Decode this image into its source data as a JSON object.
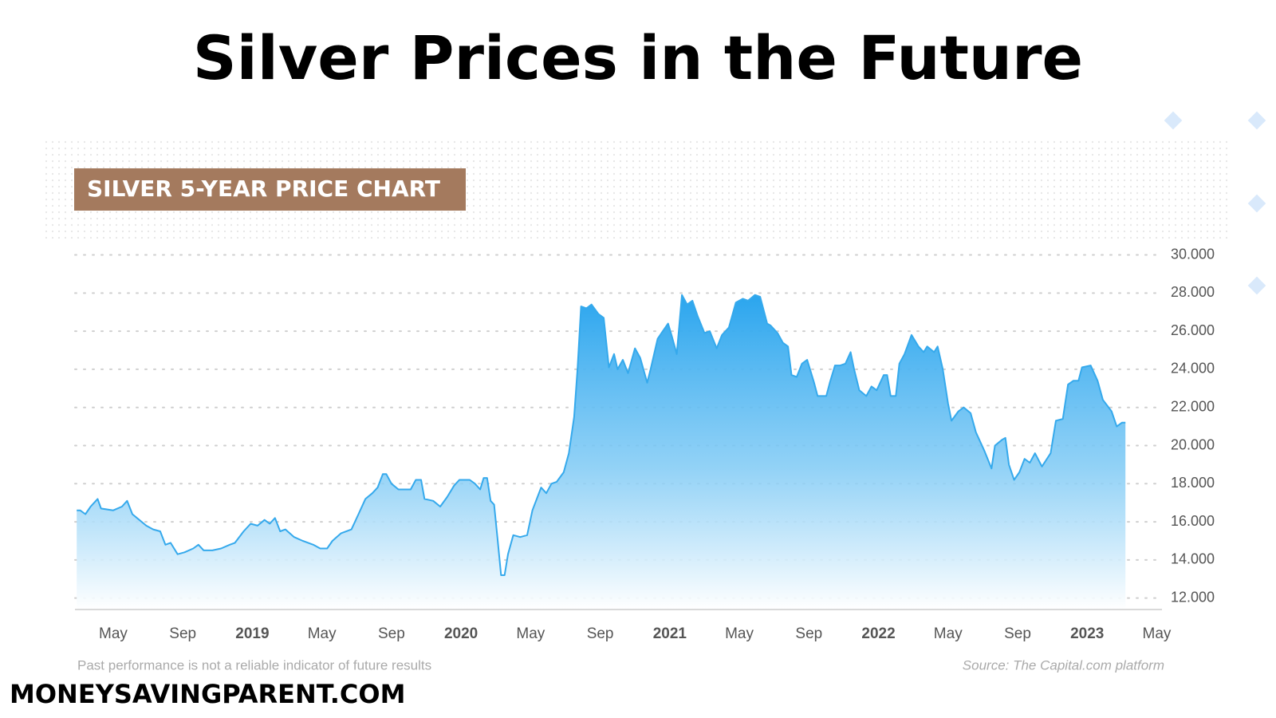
{
  "chart_data": {
    "type": "area",
    "title": "Silver Prices in the Future",
    "subtitle": "SILVER 5-YEAR PRICE CHART",
    "note": "Past performance is not a reliable indicator of future results",
    "source": "Source: The Capital.com platform",
    "color": "#35a9ec",
    "grid": true,
    "xlim": [
      -2.2,
      60.3
    ],
    "xticks": [
      {
        "value": 0,
        "label": "May"
      },
      {
        "value": 4,
        "label": "Sep"
      },
      {
        "value": 8,
        "label": "2019"
      },
      {
        "value": 12,
        "label": "May"
      },
      {
        "value": 16,
        "label": "Sep"
      },
      {
        "value": 20,
        "label": "2020"
      },
      {
        "value": 24,
        "label": "May"
      },
      {
        "value": 28,
        "label": "Sep"
      },
      {
        "value": 32,
        "label": "2021"
      },
      {
        "value": 36,
        "label": "May"
      },
      {
        "value": 40,
        "label": "Sep"
      },
      {
        "value": 44,
        "label": "2022"
      },
      {
        "value": 48,
        "label": "May"
      },
      {
        "value": 52,
        "label": "Sep"
      },
      {
        "value": 56,
        "label": "2023"
      },
      {
        "value": 60,
        "label": "May"
      }
    ],
    "ylim": [
      11.4,
      30.4
    ],
    "yticks": [
      {
        "value": 12,
        "label": "12.000"
      },
      {
        "value": 14,
        "label": "14.000"
      },
      {
        "value": 16,
        "label": "16.000"
      },
      {
        "value": 18,
        "label": "18.000"
      },
      {
        "value": 20,
        "label": "20.000"
      },
      {
        "value": 22,
        "label": "22.000"
      },
      {
        "value": 24,
        "label": "24.000"
      },
      {
        "value": 26,
        "label": "26.000"
      },
      {
        "value": 28,
        "label": "28.000"
      },
      {
        "value": 30,
        "label": "30.000"
      }
    ],
    "x": [
      -2.1,
      -1.9,
      -1.6,
      -1.3,
      -0.9,
      -0.7,
      0,
      0.5,
      0.8,
      1.1,
      1.5,
      1.9,
      2.3,
      2.7,
      3.0,
      3.3,
      3.7,
      4.1,
      4.6,
      4.9,
      5.2,
      5.7,
      6.2,
      6.7,
      7.0,
      7.5,
      7.9,
      8.3,
      8.7,
      9.0,
      9.3,
      9.6,
      9.9,
      10.4,
      10.9,
      11.5,
      11.9,
      12.3,
      12.6,
      13.1,
      13.7,
      14.1,
      14.5,
      14.9,
      15.2,
      15.5,
      15.7,
      16.0,
      16.4,
      17.1,
      17.4,
      17.7,
      17.9,
      18.4,
      18.8,
      19.2,
      19.6,
      19.9,
      20.5,
      20.8,
      21.1,
      21.3,
      21.5,
      21.7,
      21.9,
      22.1,
      22.3,
      22.5,
      22.7,
      23.0,
      23.4,
      23.8,
      24.1,
      24.6,
      24.9,
      25.2,
      25.5,
      25.9,
      26.2,
      26.5,
      26.7,
      26.9,
      27.2,
      27.5,
      27.9,
      28.2,
      28.5,
      28.8,
      29.0,
      29.3,
      29.6,
      30.0,
      30.3,
      30.7,
      30.9,
      31.3,
      31.6,
      31.9,
      32.1,
      32.4,
      32.7,
      33.0,
      33.3,
      33.6,
      34.0,
      34.3,
      34.7,
      35.0,
      35.4,
      35.8,
      36.2,
      36.5,
      36.9,
      37.2,
      37.6,
      37.8,
      38.2,
      38.5,
      38.8,
      39.0,
      39.3,
      39.6,
      39.9,
      40.3,
      40.5,
      41.0,
      41.2,
      41.5,
      41.8,
      42.1,
      42.4,
      42.6,
      42.9,
      43.3,
      43.6,
      43.9,
      44.3,
      44.5,
      44.7,
      45.0,
      45.2,
      45.5,
      45.9,
      46.3,
      46.6,
      46.8,
      47.2,
      47.4,
      47.7,
      48.0,
      48.2,
      48.6,
      48.9,
      49.3,
      49.6,
      50.1,
      50.5,
      50.7,
      51.1,
      51.3,
      51.5,
      51.8,
      52.1,
      52.4,
      52.7,
      53.0,
      53.4,
      53.9,
      54.2,
      54.6,
      54.9,
      55.2,
      55.5,
      55.7,
      56.2,
      56.6,
      56.9,
      57.4,
      57.7,
      58.0,
      58.2
    ],
    "values": [
      16.6,
      16.6,
      16.4,
      16.8,
      17.2,
      16.7,
      16.6,
      16.8,
      17.1,
      16.4,
      16.1,
      15.8,
      15.6,
      15.5,
      14.8,
      14.9,
      14.3,
      14.4,
      14.6,
      14.8,
      14.5,
      14.5,
      14.6,
      14.8,
      14.9,
      15.5,
      15.9,
      15.8,
      16.1,
      15.9,
      16.2,
      15.5,
      15.6,
      15.2,
      15.0,
      14.8,
      14.6,
      14.6,
      15.0,
      15.4,
      15.6,
      16.4,
      17.2,
      17.5,
      17.8,
      18.5,
      18.5,
      18.0,
      17.7,
      17.7,
      18.2,
      18.2,
      17.2,
      17.1,
      16.8,
      17.3,
      17.9,
      18.2,
      18.2,
      18.0,
      17.7,
      18.3,
      18.3,
      17.1,
      16.9,
      15.1,
      13.2,
      13.2,
      14.3,
      15.3,
      15.2,
      15.3,
      16.6,
      17.8,
      17.5,
      18.0,
      18.1,
      18.6,
      19.6,
      21.5,
      24.1,
      27.3,
      27.2,
      27.4,
      26.9,
      26.7,
      24.1,
      24.8,
      24.0,
      24.5,
      23.8,
      25.1,
      24.6,
      23.3,
      24.0,
      25.6,
      26.0,
      26.4,
      25.8,
      24.8,
      27.9,
      27.4,
      27.6,
      26.8,
      25.9,
      26.0,
      25.1,
      25.8,
      26.2,
      27.5,
      27.7,
      27.6,
      27.9,
      27.8,
      26.4,
      26.3,
      25.9,
      25.4,
      25.2,
      23.7,
      23.6,
      24.3,
      24.5,
      23.3,
      22.6,
      22.6,
      23.3,
      24.2,
      24.2,
      24.3,
      24.9,
      24.0,
      22.9,
      22.6,
      23.1,
      22.9,
      23.7,
      23.7,
      22.6,
      22.6,
      24.3,
      24.8,
      25.8,
      25.2,
      24.9,
      25.2,
      24.9,
      25.2,
      24.0,
      22.2,
      21.3,
      21.8,
      22.0,
      21.7,
      20.7,
      19.7,
      18.8,
      20.0,
      20.3,
      20.4,
      19.0,
      18.2,
      18.6,
      19.3,
      19.1,
      19.6,
      18.9,
      19.6,
      21.3,
      21.4,
      23.2,
      23.4,
      23.4,
      24.1,
      24.2,
      23.4,
      22.4,
      21.8,
      21.0,
      21.2,
      21.2
    ]
  },
  "brand": "MONEYSAVINGPARENT.COM"
}
